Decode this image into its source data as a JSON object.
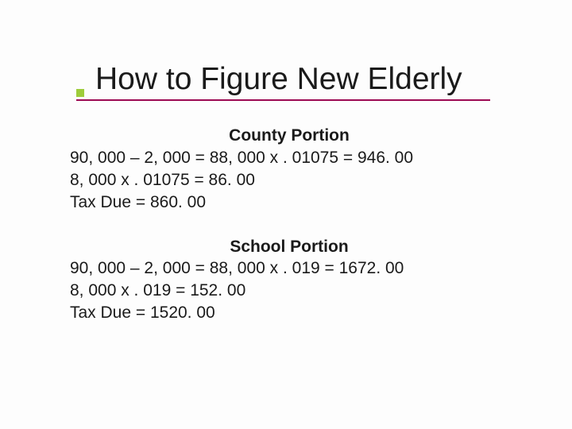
{
  "title": "How to Figure New Elderly",
  "colors": {
    "bullet": "#9ecc3b",
    "underline": "#9c0a53",
    "text": "#1a1a1a",
    "background": "#fdfdfd"
  },
  "typography": {
    "title_fontsize": 39,
    "body_fontsize": 21,
    "font_family": "Verdana, Geneva, sans-serif"
  },
  "sections": [
    {
      "heading": "County Portion",
      "lines": [
        "90, 000 – 2, 000 = 88, 000 x . 01075 = 946. 00",
        "8, 000 x . 01075 = 86. 00",
        "Tax Due = 860. 00"
      ]
    },
    {
      "heading": "School Portion",
      "lines": [
        "90, 000 – 2, 000 = 88, 000 x . 019 = 1672. 00",
        "8, 000 x . 019 = 152. 00",
        "Tax Due = 1520. 00"
      ]
    }
  ]
}
